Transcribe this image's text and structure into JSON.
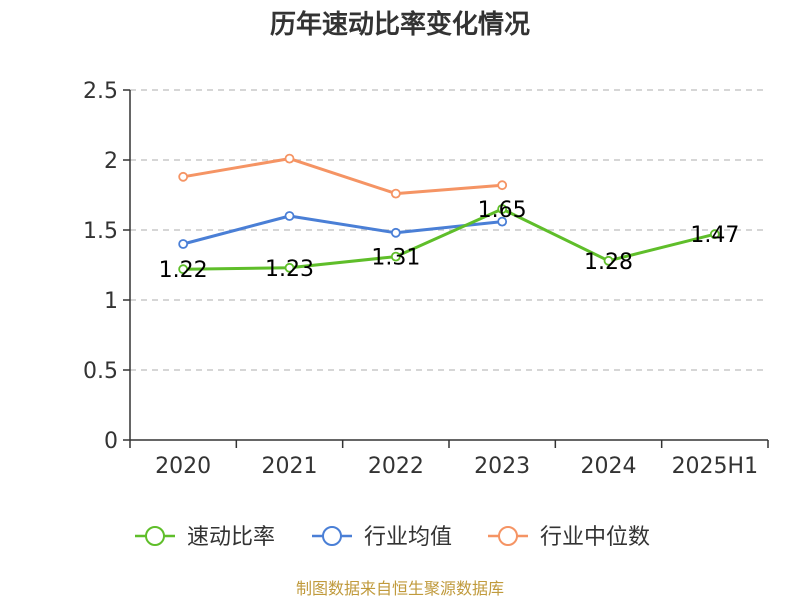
{
  "source_text": "制图数据来自恒生聚源数据库",
  "colors": {
    "axis": "#333333",
    "grid": "#c8c8c8",
    "source": "#c09a3c"
  },
  "chart_data": {
    "type": "line",
    "title": "历年速动比率变化情况",
    "categories": [
      "2020",
      "2021",
      "2022",
      "2023",
      "2024",
      "2025H1"
    ],
    "ylim": [
      0,
      2.5
    ],
    "yticks": [
      0,
      0.5,
      1,
      1.5,
      2,
      2.5
    ],
    "ytick_labels": [
      "0",
      "0.5",
      "1",
      "1.5",
      "2",
      "2.5"
    ],
    "grid": true,
    "legend_position": "bottom",
    "series": [
      {
        "name": "速动比率",
        "color": "#5fbe2a",
        "values": [
          1.22,
          1.23,
          1.31,
          1.65,
          1.28,
          1.47
        ],
        "labels": [
          "1.22",
          "1.23",
          "1.31",
          "1.65",
          "1.28",
          "1.47"
        ],
        "show_labels": true
      },
      {
        "name": "行业均值",
        "color": "#4a7fd6",
        "values": [
          1.4,
          1.6,
          1.48,
          1.56,
          null,
          null
        ],
        "show_labels": false
      },
      {
        "name": "行业中位数",
        "color": "#f59464",
        "values": [
          1.88,
          2.01,
          1.76,
          1.82,
          null,
          null
        ],
        "show_labels": false
      }
    ]
  }
}
